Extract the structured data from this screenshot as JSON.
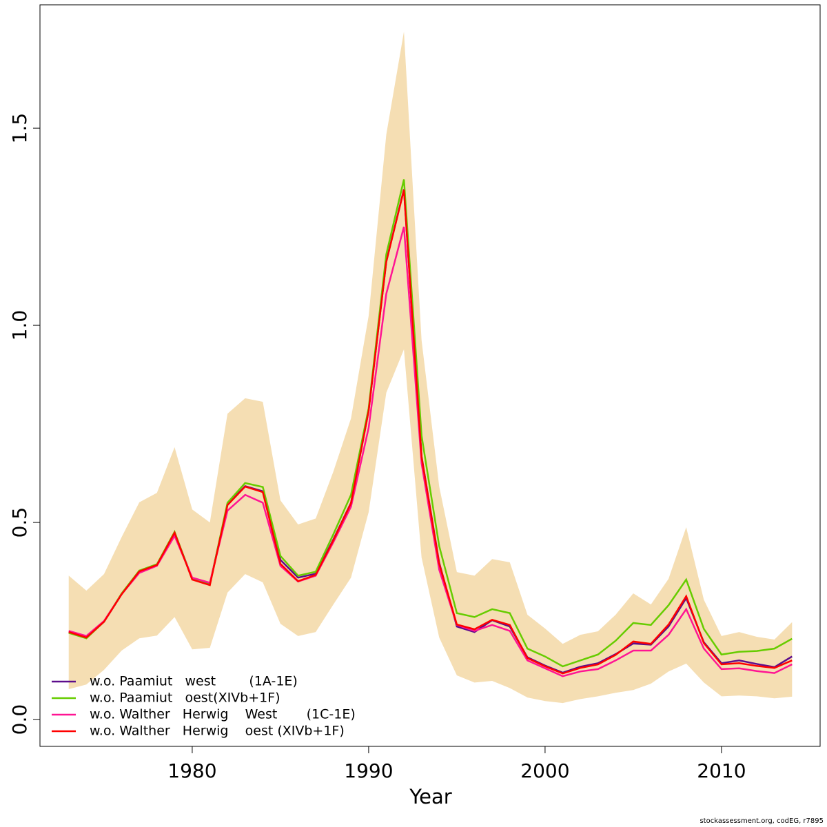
{
  "chart_data": {
    "type": "line",
    "x_label": "Year",
    "footer": "stockassessment.org, codEG, r7895",
    "x": [
      1973,
      1974,
      1975,
      1976,
      1977,
      1978,
      1979,
      1980,
      1981,
      1982,
      1983,
      1984,
      1985,
      1986,
      1987,
      1988,
      1989,
      1990,
      1991,
      1992,
      1993,
      1994,
      1995,
      1996,
      1997,
      1998,
      1999,
      2000,
      2001,
      2002,
      2003,
      2004,
      2005,
      2006,
      2007,
      2008,
      2009,
      2010,
      2011,
      2012,
      2013,
      2014
    ],
    "band": {
      "color": "#f5deb3",
      "upper": [
        0.365,
        0.327,
        0.369,
        0.463,
        0.551,
        0.575,
        0.691,
        0.533,
        0.5,
        0.776,
        0.815,
        0.806,
        0.556,
        0.495,
        0.51,
        0.629,
        0.764,
        1.024,
        1.484,
        1.745,
        0.962,
        0.591,
        0.374,
        0.365,
        0.407,
        0.399,
        0.266,
        0.231,
        0.192,
        0.215,
        0.224,
        0.266,
        0.32,
        0.292,
        0.357,
        0.488,
        0.304,
        0.212,
        0.222,
        0.21,
        0.203,
        0.247
      ],
      "lower": [
        0.077,
        0.089,
        0.126,
        0.175,
        0.206,
        0.213,
        0.26,
        0.178,
        0.182,
        0.322,
        0.369,
        0.348,
        0.243,
        0.212,
        0.222,
        0.292,
        0.36,
        0.526,
        0.829,
        0.939,
        0.411,
        0.208,
        0.112,
        0.094,
        0.098,
        0.08,
        0.056,
        0.047,
        0.042,
        0.052,
        0.059,
        0.068,
        0.075,
        0.091,
        0.122,
        0.142,
        0.094,
        0.059,
        0.061,
        0.059,
        0.054,
        0.058
      ]
    },
    "series": [
      {
        "name": "w.o. Paamiut   west        (1A-1E)",
        "color": "#5c0d8c",
        "values": [
          0.222,
          0.208,
          0.248,
          0.318,
          0.376,
          0.392,
          0.474,
          0.358,
          0.344,
          0.546,
          0.592,
          0.579,
          0.405,
          0.36,
          0.37,
          0.457,
          0.55,
          0.784,
          1.162,
          1.345,
          0.668,
          0.398,
          0.236,
          0.222,
          0.252,
          0.236,
          0.158,
          0.137,
          0.119,
          0.134,
          0.143,
          0.166,
          0.193,
          0.19,
          0.236,
          0.308,
          0.196,
          0.143,
          0.15,
          0.141,
          0.133,
          0.16
        ]
      },
      {
        "name": "w.o. Paamiut   oest(XIVb+1F)",
        "color": "#66cc00",
        "values": [
          0.22,
          0.206,
          0.248,
          0.32,
          0.378,
          0.394,
          0.476,
          0.356,
          0.342,
          0.55,
          0.6,
          0.59,
          0.415,
          0.365,
          0.375,
          0.47,
          0.57,
          0.79,
          1.18,
          1.37,
          0.72,
          0.44,
          0.27,
          0.26,
          0.28,
          0.27,
          0.18,
          0.16,
          0.135,
          0.15,
          0.165,
          0.2,
          0.245,
          0.24,
          0.29,
          0.355,
          0.23,
          0.165,
          0.172,
          0.174,
          0.18,
          0.205
        ]
      },
      {
        "name": "w.o. Walther   Herwig    West       (1C-1E)",
        "color": "#ff1493",
        "values": [
          0.225,
          0.212,
          0.25,
          0.318,
          0.372,
          0.39,
          0.466,
          0.36,
          0.347,
          0.53,
          0.57,
          0.55,
          0.39,
          0.35,
          0.365,
          0.45,
          0.54,
          0.74,
          1.08,
          1.25,
          0.65,
          0.38,
          0.24,
          0.225,
          0.24,
          0.225,
          0.15,
          0.13,
          0.11,
          0.122,
          0.128,
          0.15,
          0.175,
          0.175,
          0.215,
          0.28,
          0.18,
          0.128,
          0.13,
          0.123,
          0.118,
          0.14
        ]
      },
      {
        "name": "w.o. Walther   Herwig    oest (XIVb+1F)",
        "color": "#ff0000",
        "values": [
          0.222,
          0.208,
          0.248,
          0.318,
          0.376,
          0.392,
          0.474,
          0.355,
          0.341,
          0.544,
          0.591,
          0.577,
          0.395,
          0.351,
          0.367,
          0.455,
          0.549,
          0.783,
          1.161,
          1.344,
          0.666,
          0.395,
          0.241,
          0.229,
          0.253,
          0.24,
          0.156,
          0.135,
          0.117,
          0.131,
          0.14,
          0.164,
          0.198,
          0.192,
          0.241,
          0.313,
          0.194,
          0.14,
          0.143,
          0.136,
          0.131,
          0.15
        ]
      }
    ],
    "xlim": [
      1971.37,
      2015.59
    ],
    "ylim": [
      -0.068,
      1.813
    ],
    "xticks": [
      1980,
      1990,
      2000,
      2010
    ],
    "yticks": [
      {
        "value": 0,
        "label": "0.0"
      },
      {
        "value": 0.5,
        "label": "0.5"
      },
      {
        "value": 1,
        "label": "1.0"
      },
      {
        "value": 1.5,
        "label": "1.5"
      }
    ],
    "legend": "bottom-left"
  }
}
